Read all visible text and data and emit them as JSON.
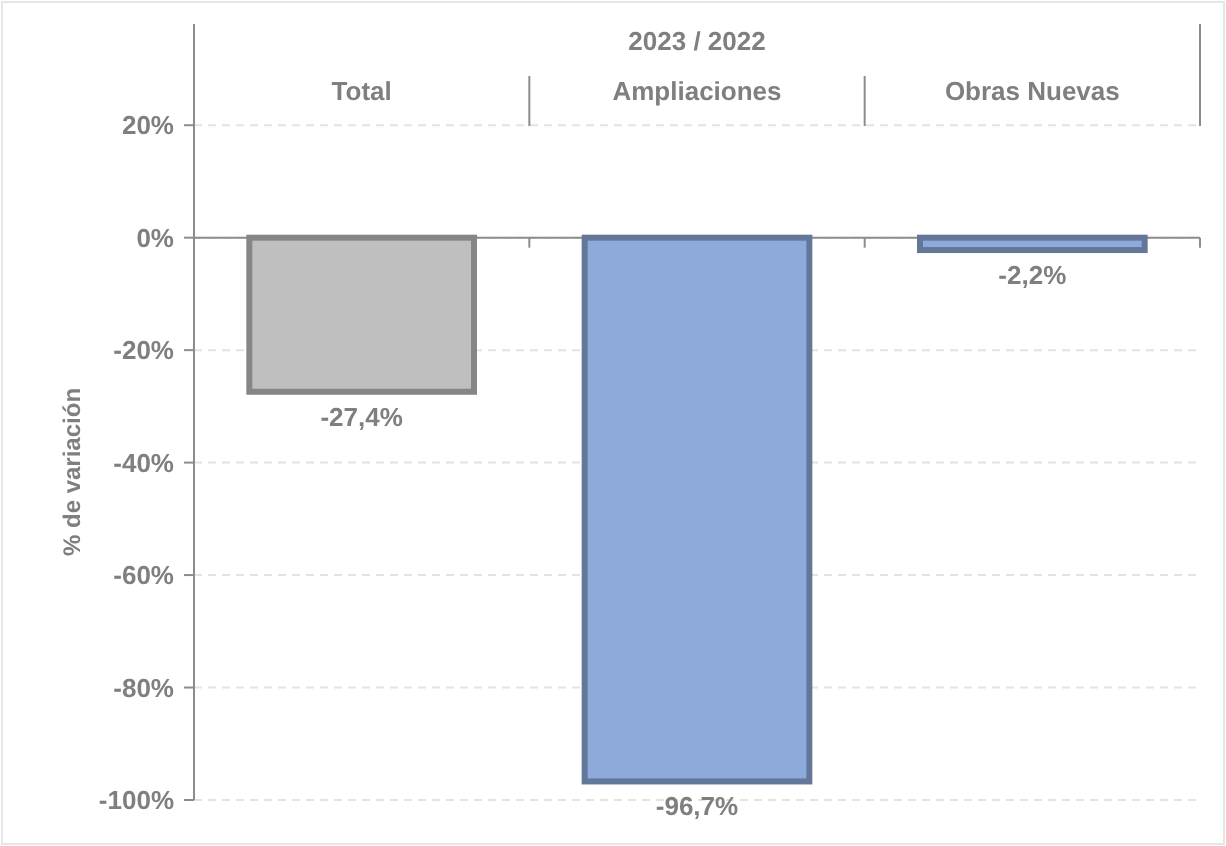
{
  "chart_data": {
    "type": "bar",
    "xlabel": "2023 / 2022",
    "ylabel": "% de variación",
    "categories": [
      "Total",
      "Ampliaciones",
      "Obras Nuevas"
    ],
    "values": [
      -27.4,
      -96.7,
      -2.2
    ],
    "colors": [
      "#bfbfbf",
      "#8eaadb",
      "#8eaadb"
    ],
    "value_labels": [
      "-27,4%",
      "-96,7%",
      "-2,2%"
    ],
    "ylim": [
      -100,
      38
    ],
    "yticks": [
      {
        "value": -100,
        "label": "-100%"
      },
      {
        "value": -80,
        "label": "-80%"
      },
      {
        "value": -60,
        "label": "-60%"
      },
      {
        "value": -40,
        "label": "-40%"
      },
      {
        "value": -20,
        "label": "-20%"
      },
      {
        "value": 0,
        "label": "0%"
      },
      {
        "value": 20,
        "label": "20%"
      }
    ],
    "grid": "y"
  }
}
